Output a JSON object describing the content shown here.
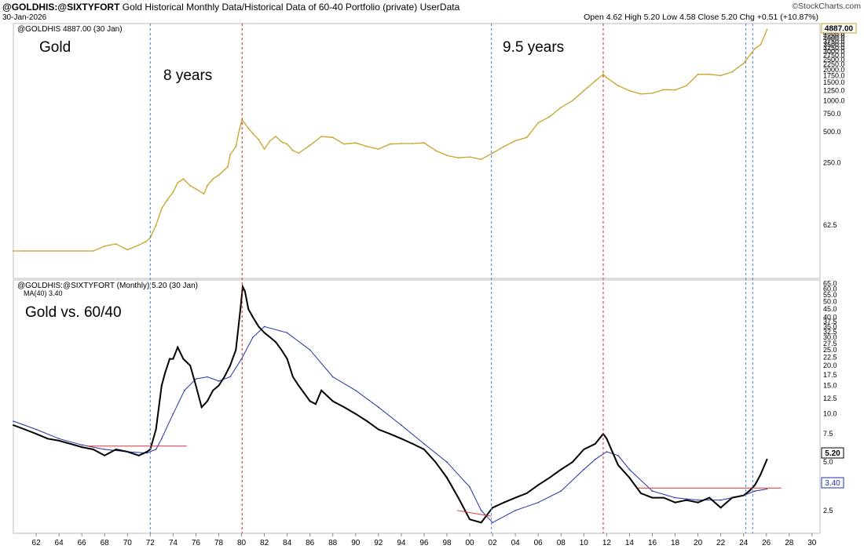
{
  "header": {
    "symbol": "@GOLDHIS:@SIXTYFORT",
    "description": "Gold Historical Monthly Data/Historical Data of 60-40 Portfolio (private)",
    "source": "UserData",
    "date": "30-Jan-2026",
    "ohlc": "Open 4.62  High 5.20  Low 4.58  Close 5.20  Chg +0.51 (+10.87%)",
    "brand": "©StockCharts.com"
  },
  "colors": {
    "gold": "#c9a227",
    "ratio": "#000000",
    "ma": "#1f2fa8",
    "support": "#e03030",
    "blue_marker": "#4a7bd6",
    "red_marker": "#d02020"
  },
  "chart_data": [
    {
      "type": "line",
      "legend": "@GOLDHIS 4887.00 (30 Jan)",
      "annotations": [
        "Gold",
        "8 years",
        "9.5 years"
      ],
      "scale": "log",
      "last_value_label": "4887.00",
      "y_ticks": [
        "62.5",
        "250.0",
        "500.0",
        "750.0",
        "1000.0",
        "1250.0",
        "1500.0",
        "1750.0",
        "2000.0",
        "2250.0",
        "2500.0",
        "2750.0",
        "3000.0",
        "3250.0",
        "3500.0",
        "3750.0",
        "4000.0",
        "4250.0",
        "4500.0"
      ],
      "series": [
        {
          "x": [
            1960,
            1961,
            1962,
            1963,
            1964,
            1965,
            1966,
            1967,
            1968,
            1969,
            1970,
            1971,
            1971.6,
            1972,
            1972.5,
            1973,
            1973.5,
            1974,
            1974.4,
            1974.9,
            1975.5,
            1976,
            1976.7,
            1977,
            1977.5,
            1978,
            1978.8,
            1979,
            1979.5,
            1979.8,
            1980.05,
            1980.3,
            1980.6,
            1981,
            1981.5,
            1982,
            1982.5,
            1983,
            1983.5,
            1984,
            1984.5,
            1985,
            1986,
            1987,
            1988,
            1989,
            1990,
            1991,
            1992,
            1993,
            1994,
            1995,
            1996,
            1997,
            1998,
            1999,
            2000,
            2001,
            2002,
            2003,
            2004,
            2005,
            2006,
            2007,
            2008,
            2009,
            2010,
            2011,
            2011.7,
            2012,
            2013,
            2014,
            2015,
            2016,
            2017,
            2018,
            2019,
            2020,
            2021,
            2022,
            2023,
            2024,
            2025,
            2025.5,
            2026.05
          ],
          "y": [
            35,
            35,
            35,
            35,
            35,
            35,
            35,
            35,
            39,
            41,
            36,
            40,
            43,
            47,
            62,
            90,
            110,
            130,
            160,
            175,
            150,
            140,
            125,
            150,
            175,
            190,
            230,
            300,
            360,
            520,
            650,
            600,
            540,
            480,
            420,
            340,
            410,
            450,
            400,
            380,
            330,
            310,
            370,
            450,
            440,
            380,
            390,
            360,
            340,
            380,
            385,
            385,
            390,
            330,
            295,
            280,
            285,
            270,
            310,
            360,
            410,
            440,
            610,
            700,
            860,
            1000,
            1250,
            1550,
            1800,
            1670,
            1400,
            1250,
            1160,
            1180,
            1280,
            1270,
            1400,
            1800,
            1800,
            1750,
            1900,
            2300,
            3200,
            3500,
            4887
          ]
        }
      ]
    },
    {
      "type": "line",
      "legend": [
        "@GOLDHIS:@SIXTYFORT (Monthly) 5.20 (30 Jan)",
        "MA(40) 3.40"
      ],
      "annotations": [
        "Gold vs. 60/40"
      ],
      "scale": "log",
      "x_ticks": [
        "62",
        "64",
        "66",
        "68",
        "70",
        "72",
        "74",
        "76",
        "78",
        "80",
        "82",
        "84",
        "86",
        "88",
        "90",
        "92",
        "94",
        "96",
        "98",
        "00",
        "02",
        "04",
        "06",
        "08",
        "10",
        "12",
        "14",
        "16",
        "18",
        "20",
        "22",
        "24",
        "26",
        "28",
        "30"
      ],
      "y_ticks": [
        "2.5",
        "5.0",
        "7.5",
        "10.0",
        "12.5",
        "15.0",
        "17.5",
        "20.0",
        "22.5",
        "25.0",
        "27.5",
        "30.0",
        "32.5",
        "35.0",
        "37.5",
        "40.0",
        "45.0",
        "50.0",
        "55.0",
        "60.0",
        "65.0"
      ],
      "last_value_labels": [
        "5.20",
        "3.40"
      ],
      "series": [
        {
          "name": "@GOLDHIS:@SIXTYFORT",
          "x": [
            1960,
            1961,
            1962,
            1963,
            1964,
            1965,
            1966,
            1967,
            1968,
            1969,
            1970,
            1971,
            1971.7,
            1972,
            1972.5,
            1973,
            1973.3,
            1973.7,
            1974,
            1974.4,
            1974.9,
            1975.5,
            1976,
            1976.5,
            1977,
            1977.5,
            1978,
            1978.5,
            1979,
            1979.5,
            1979.9,
            1980.1,
            1980.3,
            1980.6,
            1981,
            1981.5,
            1982,
            1982.5,
            1983,
            1983.5,
            1984,
            1984.5,
            1985,
            1986,
            1986.5,
            1987,
            1988,
            1989,
            1990,
            1991,
            1992,
            1993,
            1994,
            1995,
            1996,
            1997,
            1998,
            1999,
            2000,
            2001,
            2002,
            2003,
            2004,
            2005,
            2006,
            2007,
            2008,
            2009,
            2010,
            2011,
            2011.7,
            2012,
            2013,
            2014,
            2015,
            2016,
            2017,
            2018,
            2019,
            2020,
            2021,
            2022,
            2023,
            2024,
            2024.5,
            2025,
            2025.5,
            2026.05
          ],
          "y": [
            8.5,
            8,
            7.5,
            7,
            6.8,
            6.5,
            6.2,
            6,
            5.5,
            6,
            5.8,
            5.5,
            5.8,
            6,
            8,
            15,
            18,
            22,
            22,
            26,
            22,
            20,
            15,
            11,
            12,
            14,
            15,
            17,
            20,
            25,
            45,
            62,
            58,
            45,
            40,
            35,
            32,
            30,
            28,
            25,
            22,
            17,
            15,
            12,
            11.5,
            14,
            12,
            11,
            10,
            9,
            8,
            7.5,
            7,
            6.5,
            6,
            5,
            4,
            3,
            2.2,
            2.1,
            2.6,
            2.8,
            3,
            3.2,
            3.6,
            4,
            4.5,
            5,
            6,
            6.5,
            7.5,
            7,
            4.8,
            4,
            3.2,
            3,
            3,
            2.8,
            2.9,
            2.8,
            3,
            2.6,
            3,
            3.1,
            3.3,
            3.6,
            4.2,
            5.2
          ]
        },
        {
          "name": "MA(40)",
          "x": [
            1960,
            1962,
            1964,
            1966,
            1968,
            1970,
            1971.7,
            1972.5,
            1973,
            1974,
            1975,
            1976,
            1977,
            1978,
            1979,
            1980,
            1981,
            1982,
            1984,
            1986,
            1988,
            1990,
            1992,
            1994,
            1996,
            1998,
            2000,
            2001,
            2002,
            2004,
            2006,
            2008,
            2010,
            2011,
            2012,
            2013,
            2014,
            2016,
            2018,
            2020,
            2022,
            2023,
            2024,
            2025,
            2026.05
          ],
          "y": [
            9,
            8,
            7,
            6.4,
            6,
            5.8,
            5.7,
            6,
            7,
            10,
            14,
            16.5,
            17,
            16,
            17,
            22,
            30,
            35,
            32,
            25,
            17,
            14,
            11,
            8.5,
            6.5,
            5,
            3.5,
            2.5,
            2.1,
            2.5,
            2.8,
            3.3,
            4.5,
            5.2,
            5.8,
            5.5,
            4.5,
            3.3,
            3,
            2.9,
            2.9,
            3,
            3.1,
            3.3,
            3.4
          ]
        }
      ]
    }
  ]
}
